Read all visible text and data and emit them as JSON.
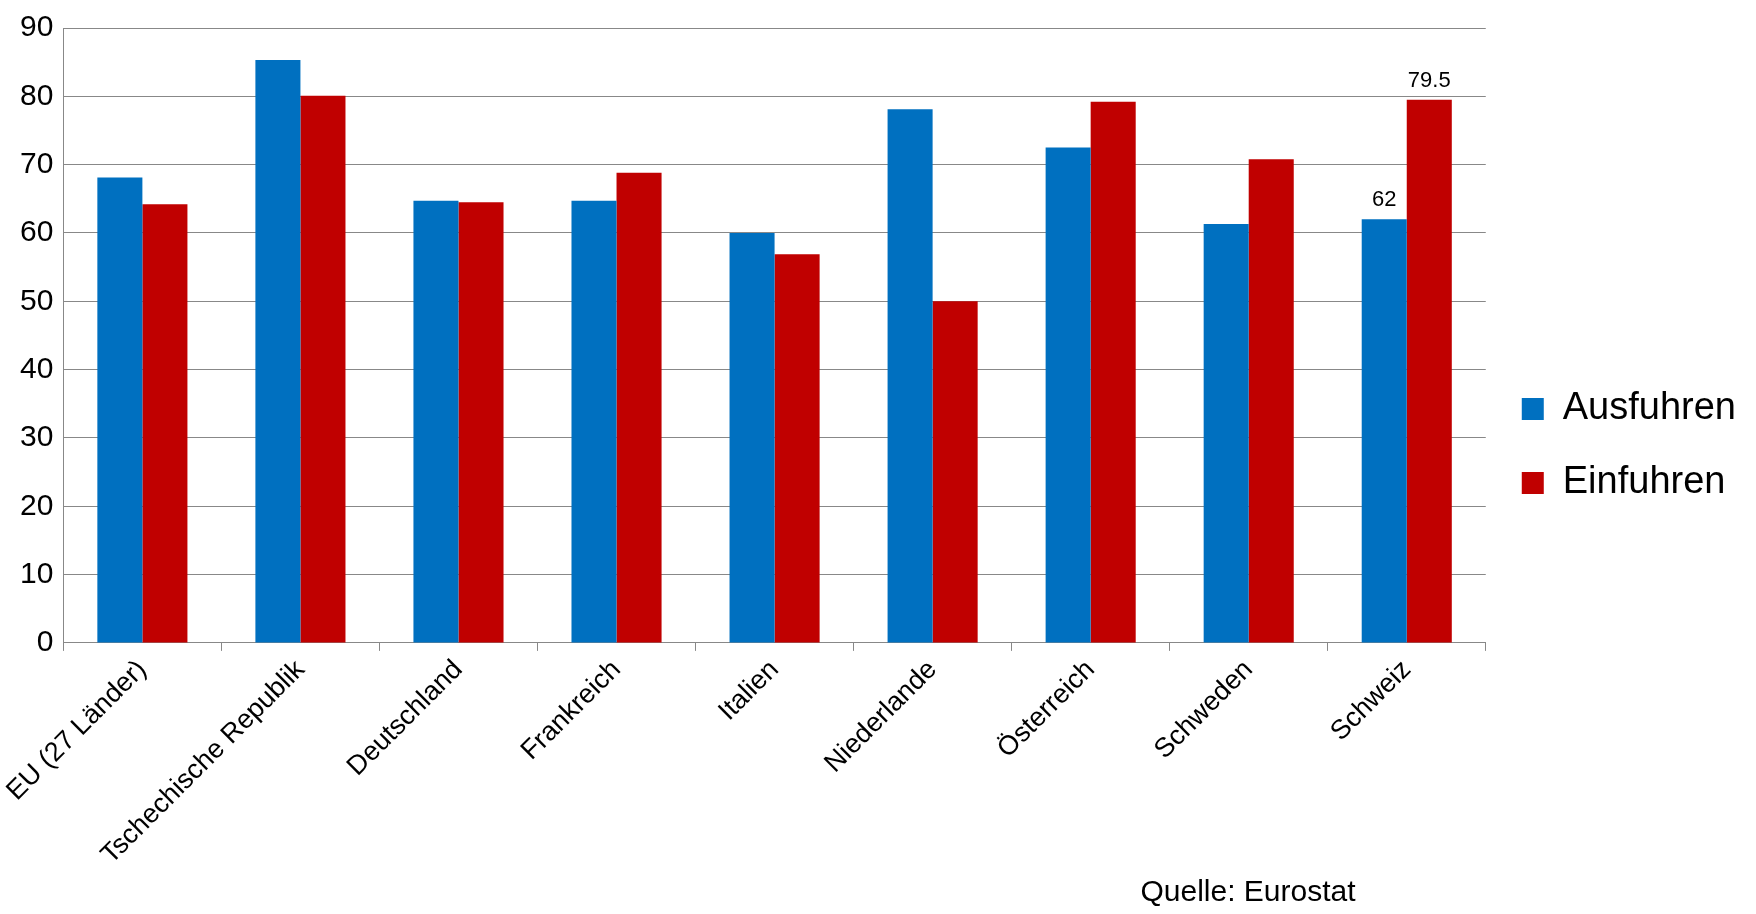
{
  "chart_data": {
    "type": "bar",
    "categories": [
      "EU (27 Länder)",
      "Tschechische Republik",
      "Deutschland",
      "Frankreich",
      "Italien",
      "Niederlande",
      "Österreich",
      "Schweden",
      "Schweiz"
    ],
    "series": [
      {
        "name": "Ausfuhren",
        "color": "#0070c0",
        "values": [
          68.1,
          85.3,
          64.7,
          64.7,
          60.0,
          78.1,
          72.5,
          61.3,
          62
        ],
        "value_labels": [
          null,
          null,
          null,
          null,
          null,
          null,
          null,
          null,
          "62"
        ]
      },
      {
        "name": "Einfuhren",
        "color": "#c00000",
        "values": [
          64.2,
          80.1,
          64.5,
          68.8,
          56.9,
          50.0,
          79.2,
          70.8,
          79.5
        ],
        "value_labels": [
          null,
          null,
          null,
          null,
          null,
          null,
          null,
          null,
          "79.5"
        ]
      }
    ],
    "ylim": [
      0,
      90
    ],
    "yticks": [
      0,
      10,
      20,
      30,
      40,
      50,
      60,
      70,
      80,
      90
    ],
    "grid": "y",
    "legend": "right",
    "annotations": [
      "Quelle: Eurostat"
    ]
  }
}
